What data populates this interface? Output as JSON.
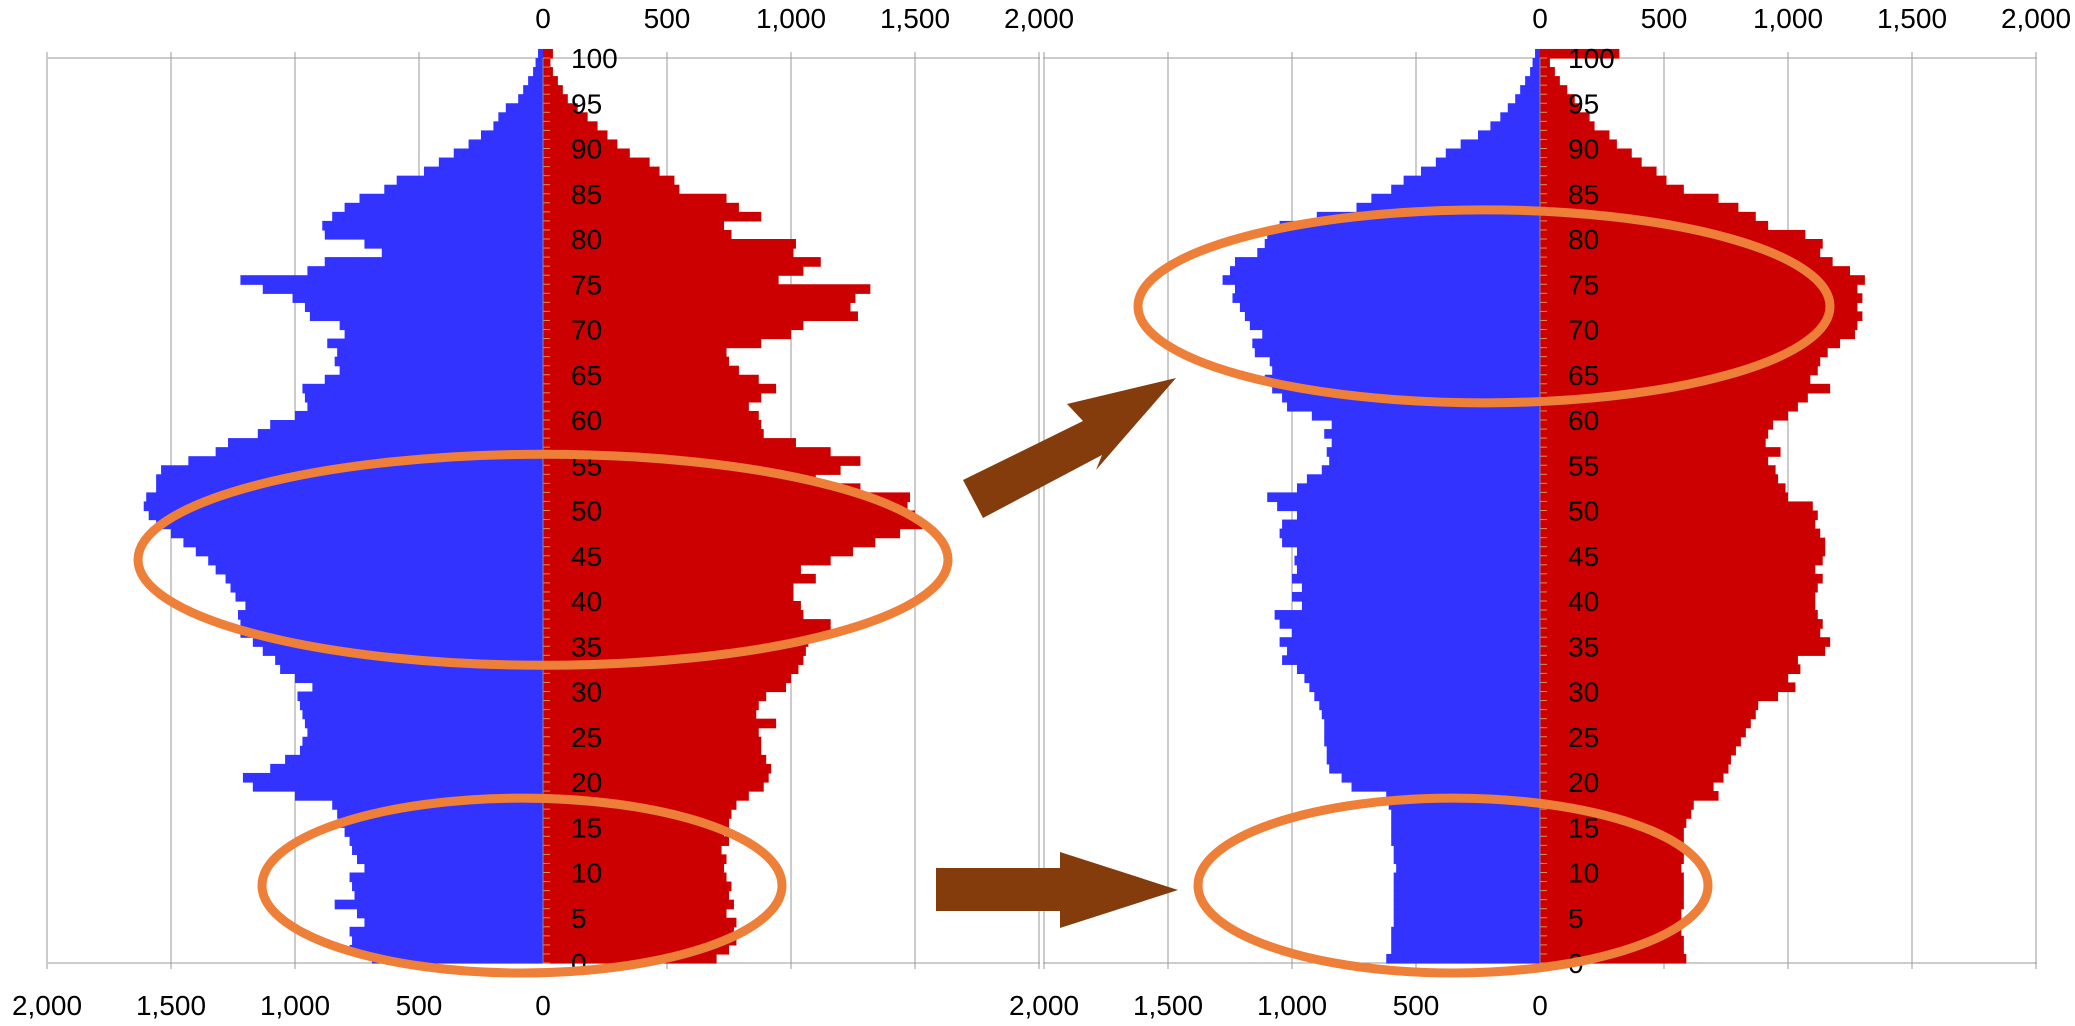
{
  "chart_data": [
    {
      "type": "bar",
      "orientation": "horizontal",
      "xlim_left": [
        0,
        2000
      ],
      "xlim_right": [
        0,
        2000
      ],
      "top_ticks": [
        "0",
        "500",
        "1,000",
        "1,500",
        "2,000"
      ],
      "bottom_ticks": [
        "2,000",
        "1,500",
        "1,000",
        "500",
        "0"
      ],
      "age_labels": [
        "100",
        "95",
        "90",
        "85",
        "80",
        "75",
        "70",
        "65",
        "60",
        "55",
        "50",
        "45",
        "40",
        "35",
        "30",
        "25",
        "20",
        "15",
        "10",
        "5",
        "0"
      ],
      "age_range": [
        0,
        100
      ],
      "grid": true,
      "colors": {
        "left": "#3333ff",
        "right": "#cc0000"
      },
      "left_values": [
        690,
        780,
        770,
        780,
        720,
        750,
        840,
        760,
        770,
        780,
        720,
        750,
        770,
        780,
        800,
        820,
        830,
        850,
        1000,
        1170,
        1210,
        1100,
        1040,
        980,
        970,
        950,
        960,
        970,
        980,
        990,
        930,
        1000,
        1060,
        1080,
        1130,
        1170,
        1220,
        1220,
        1230,
        1200,
        1240,
        1260,
        1280,
        1320,
        1350,
        1400,
        1450,
        1500,
        1560,
        1590,
        1610,
        1600,
        1560,
        1560,
        1540,
        1430,
        1320,
        1270,
        1150,
        1100,
        1000,
        950,
        960,
        970,
        880,
        820,
        840,
        830,
        870,
        800,
        820,
        940,
        960,
        1010,
        1130,
        1220,
        950,
        880,
        650,
        720,
        880,
        890,
        850,
        800,
        740,
        640,
        590,
        480,
        420,
        360,
        300,
        250,
        200,
        180,
        150,
        100,
        80,
        60,
        40,
        30,
        20
      ],
      "right_values": [
        700,
        750,
        780,
        770,
        780,
        740,
        770,
        750,
        760,
        740,
        730,
        740,
        720,
        750,
        730,
        750,
        760,
        780,
        830,
        890,
        910,
        920,
        900,
        880,
        880,
        870,
        940,
        860,
        870,
        900,
        980,
        1000,
        1030,
        1050,
        1060,
        1070,
        1160,
        1160,
        1050,
        1040,
        1010,
        1010,
        1100,
        1040,
        1160,
        1250,
        1340,
        1440,
        1530,
        1500,
        1470,
        1480,
        1280,
        1100,
        1200,
        1280,
        1160,
        1020,
        890,
        880,
        870,
        830,
        880,
        940,
        870,
        790,
        750,
        740,
        880,
        1000,
        1050,
        1270,
        1240,
        1260,
        1320,
        950,
        1050,
        1120,
        1010,
        1020,
        760,
        730,
        880,
        790,
        740,
        550,
        530,
        470,
        430,
        350,
        300,
        260,
        220,
        180,
        140,
        100,
        80,
        60,
        40,
        30,
        40
      ],
      "highlight_bands": [
        [
          34,
          56
        ],
        [
          0,
          18
        ]
      ]
    },
    {
      "type": "bar",
      "orientation": "horizontal",
      "xlim_left": [
        0,
        2000
      ],
      "xlim_right": [
        0,
        2000
      ],
      "top_ticks": [
        "0",
        "500",
        "1,000",
        "1,500",
        "2,000"
      ],
      "bottom_ticks": [
        "2,000",
        "1,500",
        "1,000",
        "500",
        "0"
      ],
      "age_labels": [
        "100",
        "95",
        "90",
        "85",
        "80",
        "75",
        "70",
        "65",
        "60",
        "55",
        "50",
        "45",
        "40",
        "35",
        "30",
        "25",
        "20",
        "15",
        "10",
        "5",
        "0"
      ],
      "age_range": [
        0,
        100
      ],
      "grid": true,
      "colors": {
        "left": "#3333ff",
        "right": "#cc0000"
      },
      "left_values": [
        620,
        600,
        600,
        600,
        590,
        590,
        590,
        590,
        590,
        590,
        580,
        590,
        590,
        600,
        600,
        600,
        600,
        610,
        620,
        760,
        800,
        850,
        860,
        860,
        870,
        870,
        870,
        880,
        890,
        910,
        930,
        950,
        980,
        1040,
        1020,
        1050,
        1000,
        1050,
        1070,
        960,
        1000,
        960,
        1000,
        980,
        990,
        980,
        1040,
        1050,
        1040,
        980,
        1060,
        1100,
        980,
        940,
        880,
        850,
        860,
        840,
        870,
        840,
        920,
        1020,
        1040,
        1080,
        1110,
        1080,
        1090,
        1150,
        1160,
        1120,
        1170,
        1190,
        1210,
        1240,
        1230,
        1280,
        1250,
        1230,
        1140,
        1110,
        1100,
        1050,
        900,
        740,
        680,
        600,
        550,
        480,
        420,
        380,
        320,
        250,
        200,
        160,
        130,
        100,
        80,
        60,
        40,
        30,
        20
      ],
      "right_values": [
        590,
        580,
        580,
        570,
        570,
        570,
        580,
        580,
        580,
        580,
        570,
        580,
        580,
        580,
        580,
        590,
        610,
        620,
        720,
        700,
        740,
        760,
        770,
        790,
        810,
        830,
        850,
        870,
        880,
        960,
        1030,
        1000,
        1050,
        1040,
        1150,
        1170,
        1130,
        1140,
        1120,
        1110,
        1110,
        1120,
        1140,
        1110,
        1140,
        1150,
        1150,
        1130,
        1110,
        1120,
        1100,
        1000,
        990,
        960,
        950,
        920,
        970,
        910,
        920,
        940,
        1000,
        1040,
        1080,
        1170,
        1090,
        1120,
        1130,
        1160,
        1210,
        1270,
        1280,
        1300,
        1280,
        1300,
        1280,
        1310,
        1250,
        1180,
        1130,
        1140,
        1070,
        920,
        870,
        800,
        720,
        580,
        510,
        470,
        410,
        370,
        310,
        280,
        220,
        200,
        160,
        140,
        110,
        80,
        60,
        40,
        320
      ],
      "highlight_bands": [
        [
          63,
          83
        ],
        [
          0,
          18
        ]
      ]
    }
  ],
  "icons": {
    "arrow_upper": "arrow-up-right-icon",
    "arrow_lower": "arrow-right-icon"
  }
}
